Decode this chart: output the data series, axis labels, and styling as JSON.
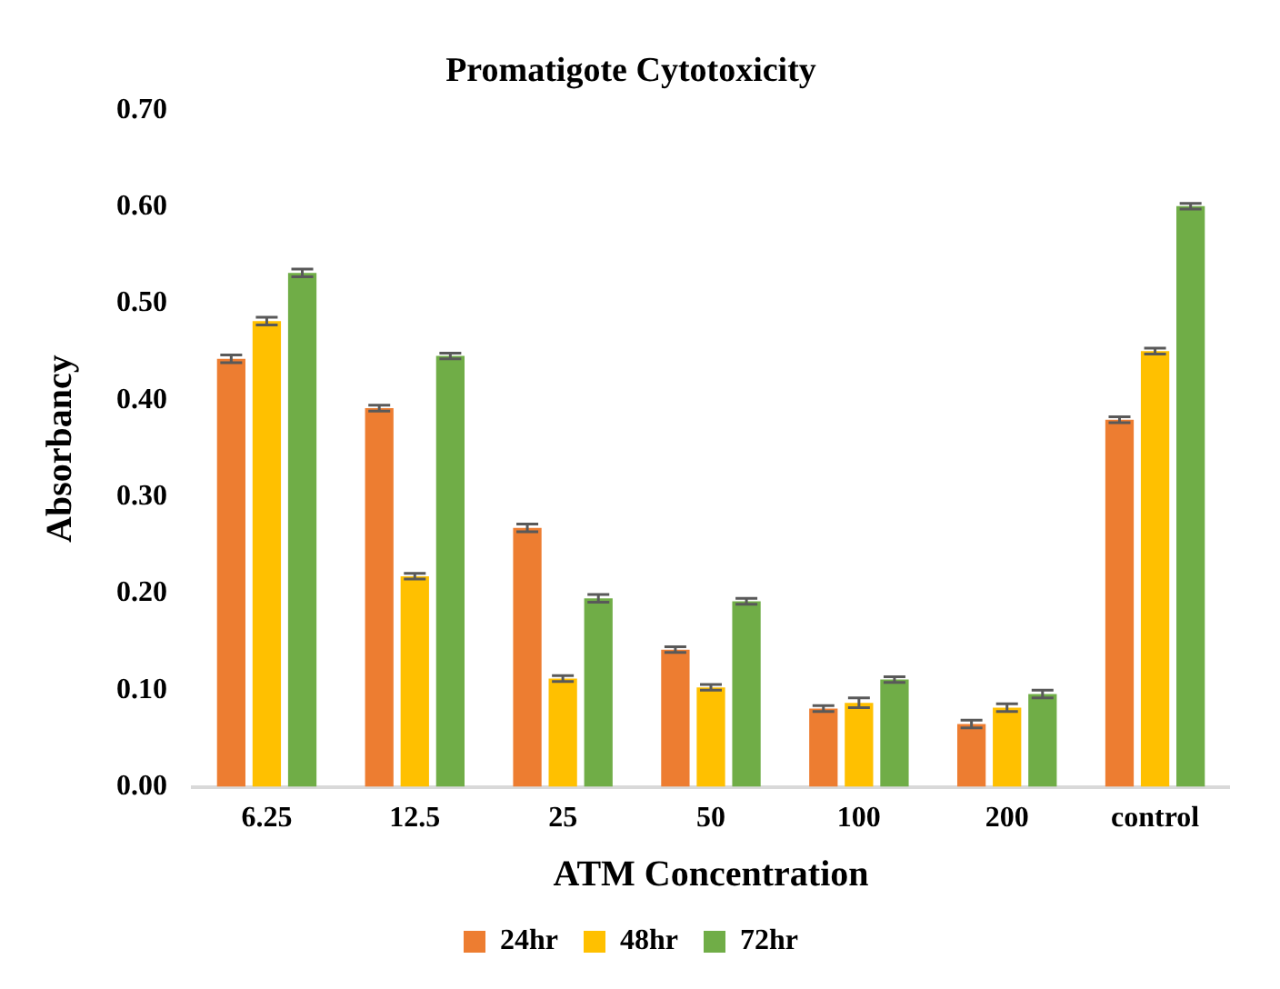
{
  "chart_data": {
    "type": "bar",
    "title": "Promatigote Cytotoxicity",
    "xlabel": "ATM Concentration",
    "ylabel": "Absorbancy",
    "categories": [
      "6.25",
      "12.5",
      "25",
      "50",
      "100",
      "200",
      "control"
    ],
    "series": [
      {
        "name": "24hr",
        "color": "#ed7d31",
        "values": [
          0.443,
          0.392,
          0.268,
          0.142,
          0.081,
          0.065,
          0.38
        ],
        "errors": [
          0.004,
          0.003,
          0.004,
          0.003,
          0.003,
          0.004,
          0.003
        ]
      },
      {
        "name": "48hr",
        "color": "#ffc000",
        "values": [
          0.482,
          0.218,
          0.112,
          0.103,
          0.087,
          0.082,
          0.451
        ],
        "errors": [
          0.004,
          0.003,
          0.003,
          0.003,
          0.005,
          0.004,
          0.003
        ]
      },
      {
        "name": "72hr",
        "color": "#70ad47",
        "values": [
          0.532,
          0.446,
          0.195,
          0.192,
          0.111,
          0.096,
          0.601
        ],
        "errors": [
          0.004,
          0.003,
          0.004,
          0.003,
          0.003,
          0.004,
          0.003
        ]
      }
    ],
    "ylim": [
      0,
      0.7
    ],
    "yticks": [
      {
        "value": 0,
        "label": "0.00"
      },
      {
        "value": 0.1,
        "label": "0.10"
      },
      {
        "value": 0.2,
        "label": "0.20"
      },
      {
        "value": 0.3,
        "label": "0.30"
      },
      {
        "value": 0.4,
        "label": "0.40"
      },
      {
        "value": 0.5,
        "label": "0.50"
      },
      {
        "value": 0.6,
        "label": "0.60"
      },
      {
        "value": 0.7,
        "label": "0.70"
      }
    ],
    "grid": false,
    "legend": "bottom"
  }
}
